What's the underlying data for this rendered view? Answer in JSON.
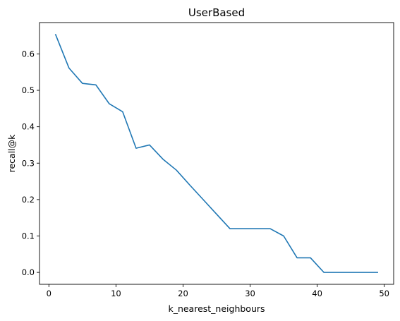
{
  "chart_data": {
    "type": "line",
    "title": "UserBased",
    "xlabel": "k_nearest_neighbours",
    "ylabel": "recall@k",
    "xlim": [
      -1.4,
      51.4
    ],
    "ylim": [
      -0.0327,
      0.686
    ],
    "xticks": [
      0,
      10,
      20,
      30,
      40,
      50
    ],
    "xtick_labels": [
      "0",
      "10",
      "20",
      "30",
      "40",
      "50"
    ],
    "yticks": [
      0.0,
      0.1,
      0.2,
      0.3,
      0.4,
      0.5,
      0.6
    ],
    "ytick_labels": [
      "0.0",
      "0.1",
      "0.2",
      "0.3",
      "0.4",
      "0.5",
      "0.6"
    ],
    "grid": false,
    "series": [
      {
        "color": "#1f77b4",
        "x": [
          1,
          3,
          5,
          7,
          9,
          11,
          13,
          15,
          17,
          19,
          21,
          23,
          25,
          27,
          29,
          31,
          33,
          35,
          37,
          39,
          41,
          43,
          45,
          47,
          49
        ],
        "y": [
          0.653,
          0.561,
          0.519,
          0.515,
          0.463,
          0.441,
          0.341,
          0.35,
          0.311,
          0.281,
          0.24,
          0.2,
          0.16,
          0.12,
          0.12,
          0.12,
          0.12,
          0.1,
          0.04,
          0.04,
          0.0,
          0.0,
          0.0,
          0.0,
          0.0
        ]
      }
    ]
  }
}
